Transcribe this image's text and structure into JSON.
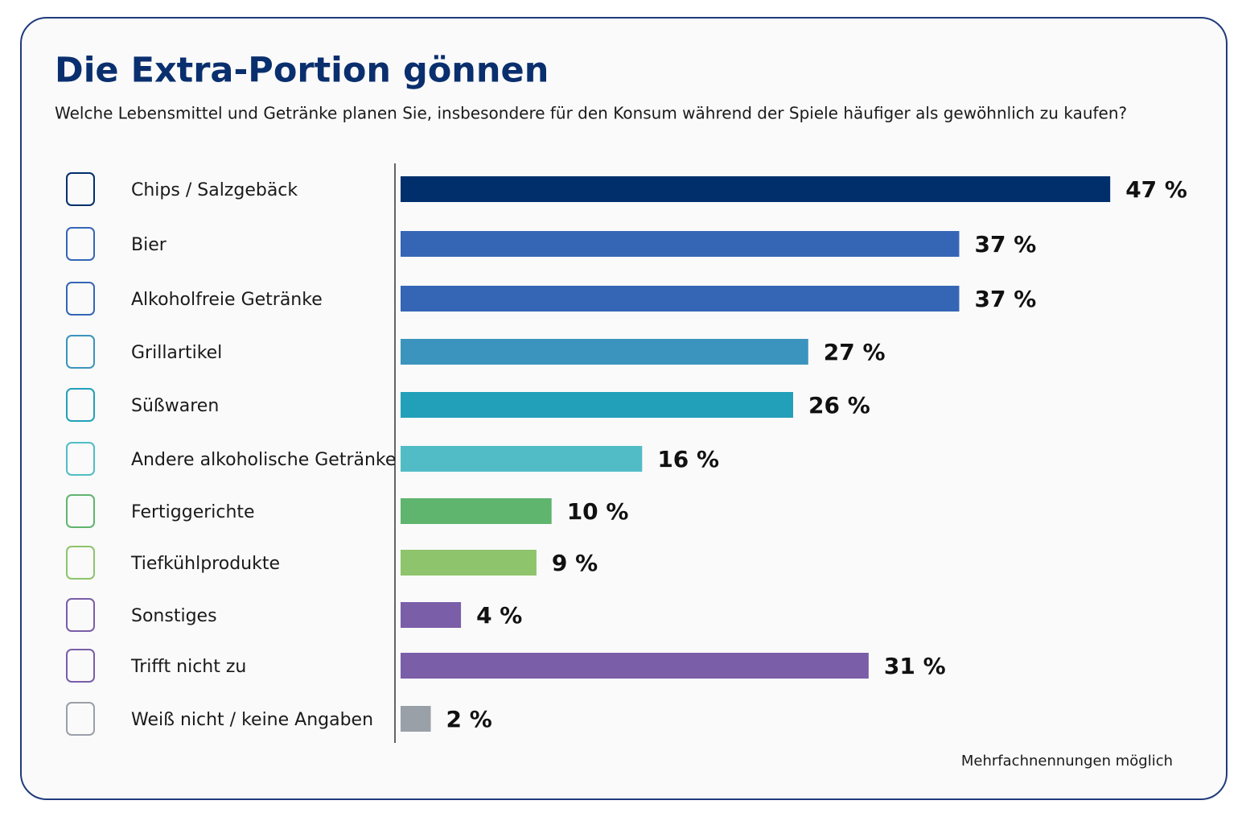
{
  "chart_data": {
    "type": "hbar",
    "title": "Die Extra-Portion gönnen",
    "subtitle": "Welche Lebensmittel und Getränke planen Sie, insbesondere für den Konsum während der Spiele häufiger als gewöhnlich zu kaufen?",
    "categories": [
      "Chips / Salzgebäck",
      "Bier",
      "Alkoholfreie Getränke",
      "Grillartikel",
      "Süßwaren",
      "Andere alkoholische Getränke",
      "Fertiggerichte",
      "Tiefkühlprodukte",
      "Sonstiges",
      "Trifft nicht zu",
      "Weiß nicht / keine Angaben"
    ],
    "values": [
      47,
      37,
      37,
      27,
      26,
      16,
      10,
      9,
      4,
      31,
      2
    ],
    "value_labels": [
      "47 %",
      "37 %",
      "37 %",
      "27 %",
      "26 %",
      "16 %",
      "10 %",
      "9 %",
      "4 %",
      "31 %",
      "2 %"
    ],
    "colors": [
      "#002f6c",
      "#3566b6",
      "#3566b6",
      "#3b94bd",
      "#23a0b9",
      "#52bcc6",
      "#5fb46e",
      "#8dc46c",
      "#7a5ea8",
      "#7a5ea8",
      "#9aa0a8"
    ],
    "footnote": "Mehrfachnennungen möglich"
  }
}
